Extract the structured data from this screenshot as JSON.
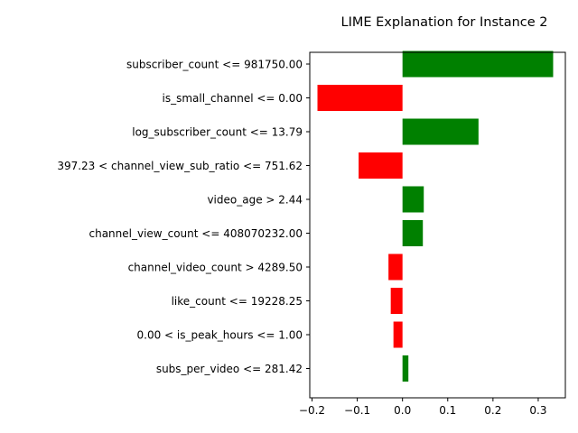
{
  "chart_data": {
    "type": "bar",
    "orientation": "horizontal",
    "title": "LIME Explanation for Instance 2",
    "xlabel": "",
    "ylabel": "",
    "xlim": [
      -0.205,
      0.36
    ],
    "xticks": [
      -0.2,
      -0.1,
      0.0,
      0.1,
      0.2,
      0.3
    ],
    "xtick_labels": [
      "−0.2",
      "−0.1",
      "0.0",
      "0.1",
      "0.2",
      "0.3"
    ],
    "grid": false,
    "colors": {
      "positive": "#008000",
      "negative": "#ff0000"
    },
    "bars": [
      {
        "label": "subscriber_count <= 981750.00",
        "value": 0.333
      },
      {
        "label": "is_small_channel <= 0.00",
        "value": -0.188
      },
      {
        "label": "log_subscriber_count <= 13.79",
        "value": 0.168
      },
      {
        "label": "397.23 < channel_view_sub_ratio <= 751.62",
        "value": -0.097
      },
      {
        "label": "video_age > 2.44",
        "value": 0.047
      },
      {
        "label": "channel_view_count <= 408070232.00",
        "value": 0.045
      },
      {
        "label": "channel_video_count > 4289.50",
        "value": -0.031
      },
      {
        "label": "like_count <= 19228.25",
        "value": -0.026
      },
      {
        "label": "0.00 < is_peak_hours <= 1.00",
        "value": -0.02
      },
      {
        "label": "subs_per_video <= 281.42",
        "value": 0.013
      }
    ]
  }
}
